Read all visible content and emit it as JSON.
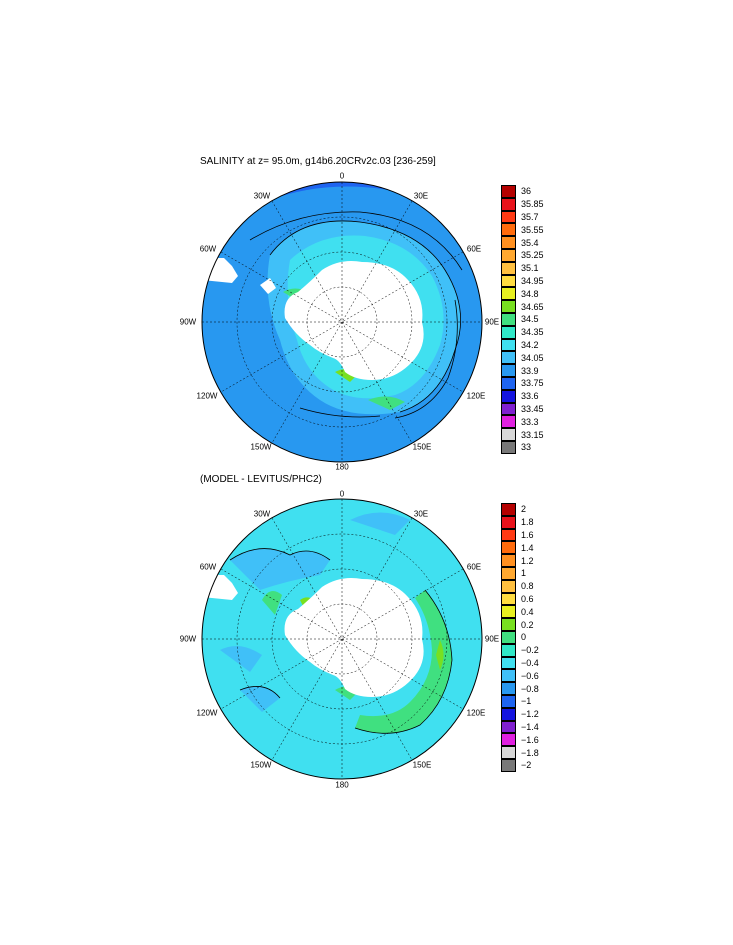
{
  "panels": [
    {
      "title": "SALINITY at z=  95.0m, g14b6.20CRv2c.03 [236-259]",
      "lon_labels": {
        "top": "0",
        "top_right": "30E",
        "right_upper": "60E",
        "right": "90E",
        "right_lower": "120E",
        "bottom_right": "150E",
        "bottom": "180",
        "bottom_left": "150W",
        "left_lower": "120W",
        "left": "90W",
        "left_upper": "60W",
        "top_left": "30W"
      },
      "colorbar": {
        "labels": [
          "36",
          "35.85",
          "35.7",
          "35.55",
          "35.4",
          "35.25",
          "35.1",
          "34.95",
          "34.8",
          "34.65",
          "34.5",
          "34.35",
          "34.2",
          "34.05",
          "33.9",
          "33.75",
          "33.6",
          "33.45",
          "33.3",
          "33.15",
          "33"
        ],
        "colors": [
          "#b40000",
          "#e8121b",
          "#ff3a14",
          "#ff6b0c",
          "#ff9020",
          "#ffa830",
          "#ffc040",
          "#ffdc40",
          "#e8f020",
          "#78e020",
          "#40e080",
          "#30e8c8",
          "#40e0f0",
          "#40c0f8",
          "#2898f0",
          "#1e64f0",
          "#1414e0",
          "#8020d0",
          "#e020e0",
          "#d8d8d8",
          "#787878"
        ]
      }
    },
    {
      "title": "(MODEL - LEVITUS/PHC2)",
      "lon_labels": {
        "top": "0",
        "top_right": "30E",
        "right_upper": "60E",
        "right": "90E",
        "right_lower": "120E",
        "bottom_right": "150E",
        "bottom": "180",
        "bottom_left": "150W",
        "left_lower": "120W",
        "left": "90W",
        "left_upper": "60W",
        "top_left": "30W"
      },
      "colorbar": {
        "labels": [
          "2",
          "1.8",
          "1.6",
          "1.4",
          "1.2",
          "1",
          "0.8",
          "0.6",
          "0.4",
          "0.2",
          "0",
          "−0.2",
          "−0.4",
          "−0.6",
          "−0.8",
          "−1",
          "−1.2",
          "−1.4",
          "−1.6",
          "−1.8",
          "−2"
        ],
        "colors": [
          "#b40000",
          "#e8121b",
          "#ff3a14",
          "#ff6b0c",
          "#ff9020",
          "#ffa830",
          "#ffc040",
          "#ffdc40",
          "#e8f020",
          "#78e020",
          "#40e080",
          "#30e8c8",
          "#40e0f0",
          "#40c0f8",
          "#2898f0",
          "#1e64f0",
          "#1414e0",
          "#8020d0",
          "#e020e0",
          "#d8d8d8",
          "#787878"
        ]
      }
    }
  ]
}
